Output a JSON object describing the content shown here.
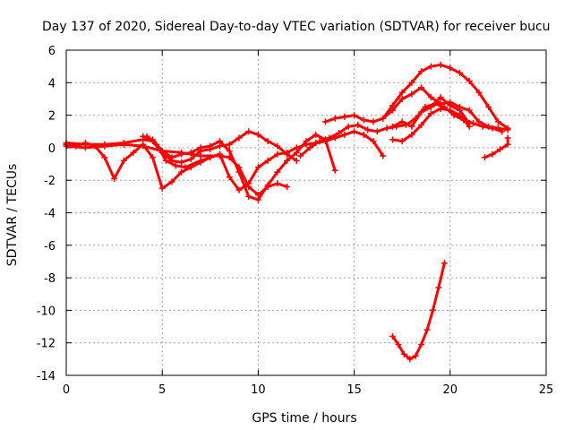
{
  "chart_data": {
    "type": "line",
    "title": "Day 137 of 2020, Sidereal Day-to-day VTEC variation (SDTVAR) for receiver bucu",
    "xlabel": "GPS time / hours",
    "ylabel": "SDTVAR / TECUs",
    "xlim": [
      0,
      25
    ],
    "ylim": [
      -14,
      6
    ],
    "xticks": [
      0,
      5,
      10,
      15,
      20,
      25
    ],
    "yticks": [
      -14,
      -12,
      -10,
      -8,
      -6,
      -4,
      -2,
      0,
      2,
      4,
      6
    ],
    "grid": true,
    "color": "#ff0000",
    "series": [
      {
        "name": "arc-1",
        "points": [
          [
            0,
            0.2
          ],
          [
            0.5,
            0.1
          ],
          [
            1,
            0.3
          ],
          [
            1.5,
            0.1
          ],
          [
            2,
            -0.6
          ],
          [
            2.5,
            -1.9
          ],
          [
            3,
            -0.8
          ],
          [
            3.5,
            -0.3
          ],
          [
            4,
            0.2
          ],
          [
            4.5,
            -0.6
          ],
          [
            5,
            -2.5
          ],
          [
            5.5,
            -2.1
          ],
          [
            6,
            -1.5
          ],
          [
            6.5,
            -1.2
          ],
          [
            7,
            -0.9
          ],
          [
            7.5,
            -0.6
          ],
          [
            8,
            -0.4
          ]
        ]
      },
      {
        "name": "arc-2",
        "points": [
          [
            0,
            0.3
          ],
          [
            1,
            0.2
          ],
          [
            2,
            0.2
          ],
          [
            3,
            0.3
          ],
          [
            4,
            0.5
          ],
          [
            4.5,
            0.4
          ],
          [
            5,
            -0.3
          ],
          [
            5.5,
            -0.8
          ],
          [
            6,
            -0.9
          ],
          [
            6.5,
            -0.7
          ],
          [
            7,
            -0.2
          ],
          [
            7.5,
            -0.1
          ],
          [
            8,
            0.1
          ],
          [
            8.5,
            0.2
          ],
          [
            9,
            0.6
          ],
          [
            9.5,
            1.0
          ],
          [
            10,
            0.8
          ],
          [
            10.5,
            0.4
          ],
          [
            11,
            0.1
          ],
          [
            11.5,
            -0.4
          ],
          [
            12,
            -0.8
          ]
        ]
      },
      {
        "name": "arc-3",
        "points": [
          [
            0,
            0.1
          ],
          [
            1,
            0.0
          ],
          [
            2,
            0.1
          ],
          [
            3,
            0.2
          ],
          [
            4,
            0.1
          ],
          [
            5,
            -0.2
          ],
          [
            6,
            -0.3
          ],
          [
            7,
            -0.5
          ],
          [
            8,
            -0.5
          ],
          [
            8.5,
            -0.6
          ],
          [
            9,
            -1.2
          ],
          [
            9.5,
            -2.4
          ],
          [
            10,
            -2.9
          ],
          [
            10.5,
            -2.4
          ],
          [
            11,
            -2.2
          ],
          [
            11.5,
            -2.4
          ]
        ]
      },
      {
        "name": "arc-4",
        "points": [
          [
            4.0,
            0.7
          ],
          [
            4.5,
            0.5
          ],
          [
            5,
            -0.2
          ],
          [
            5.5,
            -0.6
          ],
          [
            6,
            -0.4
          ],
          [
            6.5,
            -0.3
          ],
          [
            7,
            0.0
          ],
          [
            7.5,
            0.1
          ],
          [
            8,
            0.4
          ],
          [
            8.5,
            -0.2
          ],
          [
            9,
            -1.5
          ],
          [
            9.5,
            -3.0
          ],
          [
            10,
            -3.2
          ],
          [
            10.5,
            -2.3
          ],
          [
            11,
            -1.5
          ],
          [
            11.5,
            -0.8
          ],
          [
            12,
            -0.3
          ],
          [
            12.5,
            0.4
          ],
          [
            13,
            0.8
          ],
          [
            13.5,
            0.5
          ],
          [
            14,
            -1.4
          ]
        ]
      },
      {
        "name": "arc-5",
        "points": [
          [
            4.2,
            0.7
          ],
          [
            4.7,
            0.2
          ],
          [
            5.2,
            -0.8
          ],
          [
            5.7,
            -1.1
          ],
          [
            6.2,
            -1.2
          ],
          [
            7,
            -0.8
          ],
          [
            8,
            -0.4
          ],
          [
            8.5,
            -1.8
          ],
          [
            9,
            -2.6
          ],
          [
            9.5,
            -2.2
          ],
          [
            10,
            -1.2
          ],
          [
            10.5,
            -0.8
          ],
          [
            11,
            -0.4
          ],
          [
            11.5,
            -0.3
          ],
          [
            12,
            0.0
          ],
          [
            12.5,
            0.2
          ],
          [
            13,
            0.3
          ],
          [
            13.5,
            0.4
          ],
          [
            14,
            0.6
          ],
          [
            14.5,
            0.8
          ],
          [
            15,
            1.0
          ],
          [
            15.5,
            0.8
          ],
          [
            16,
            0.4
          ],
          [
            16.5,
            -0.5
          ]
        ]
      },
      {
        "name": "arc-6",
        "points": [
          [
            12.2,
            -0.5
          ],
          [
            12.7,
            0.0
          ],
          [
            13.2,
            0.4
          ],
          [
            13.7,
            0.6
          ],
          [
            14.2,
            0.9
          ],
          [
            14.7,
            1.3
          ],
          [
            15.2,
            1.4
          ],
          [
            15.7,
            1.1
          ],
          [
            16.2,
            1.0
          ],
          [
            16.7,
            1.2
          ],
          [
            17.2,
            1.3
          ],
          [
            17.7,
            1.4
          ],
          [
            18.2,
            1.8
          ],
          [
            18.7,
            2.5
          ],
          [
            19.2,
            2.7
          ],
          [
            19.7,
            2.5
          ],
          [
            20.2,
            2.0
          ],
          [
            20.7,
            1.7
          ],
          [
            21.2,
            1.5
          ],
          [
            21.7,
            1.3
          ],
          [
            22.2,
            1.2
          ],
          [
            22.7,
            1.0
          ]
        ]
      },
      {
        "name": "arc-7",
        "points": [
          [
            13.5,
            1.6
          ],
          [
            14,
            1.8
          ],
          [
            14.5,
            1.9
          ],
          [
            15,
            2.0
          ],
          [
            15.5,
            1.7
          ],
          [
            16,
            1.6
          ],
          [
            16.5,
            1.8
          ],
          [
            17,
            2.3
          ],
          [
            17.5,
            3.0
          ],
          [
            18,
            3.3
          ],
          [
            18.5,
            3.7
          ],
          [
            19,
            3.1
          ],
          [
            19.5,
            2.7
          ],
          [
            20,
            2.8
          ],
          [
            20.5,
            2.5
          ],
          [
            21,
            2.3
          ],
          [
            21.5,
            1.6
          ],
          [
            22,
            1.3
          ],
          [
            22.5,
            1.2
          ],
          [
            23,
            1.1
          ]
        ]
      },
      {
        "name": "arc-8",
        "points": [
          [
            16.5,
            1.8
          ],
          [
            17,
            2.6
          ],
          [
            17.5,
            3.4
          ],
          [
            18,
            4.0
          ],
          [
            18.5,
            4.7
          ],
          [
            19,
            5.0
          ],
          [
            19.5,
            5.1
          ],
          [
            20,
            4.9
          ],
          [
            20.5,
            4.6
          ],
          [
            21,
            4.1
          ],
          [
            21.5,
            3.4
          ],
          [
            22,
            2.5
          ],
          [
            22.5,
            1.6
          ],
          [
            23,
            1.2
          ]
        ]
      },
      {
        "name": "arc-9",
        "points": [
          [
            17.0,
            1.3
          ],
          [
            17.5,
            1.6
          ],
          [
            18,
            1.3
          ],
          [
            18.5,
            2.2
          ],
          [
            19,
            2.5
          ],
          [
            19.5,
            3.1
          ],
          [
            20,
            2.6
          ],
          [
            20.5,
            2.3
          ],
          [
            21,
            1.5
          ]
        ]
      },
      {
        "name": "arc-10",
        "points": [
          [
            17.0,
            0.5
          ],
          [
            17.5,
            0.4
          ],
          [
            18,
            0.8
          ],
          [
            18.5,
            1.4
          ],
          [
            19,
            2.1
          ],
          [
            19.5,
            2.4
          ],
          [
            20,
            2.3
          ],
          [
            20.5,
            2.0
          ],
          [
            21,
            1.3
          ]
        ]
      },
      {
        "name": "arc-11",
        "points": [
          [
            21.8,
            -0.6
          ],
          [
            22.2,
            -0.4
          ],
          [
            22.6,
            -0.1
          ],
          [
            23,
            0.2
          ],
          [
            23,
            0.6
          ]
        ]
      },
      {
        "name": "arc-12",
        "points": [
          [
            17.0,
            -11.6
          ],
          [
            17.3,
            -12.1
          ],
          [
            17.6,
            -12.7
          ],
          [
            17.9,
            -13.0
          ],
          [
            18.2,
            -12.8
          ],
          [
            18.5,
            -12.1
          ],
          [
            18.8,
            -11.2
          ],
          [
            19.1,
            -10.0
          ],
          [
            19.4,
            -8.6
          ],
          [
            19.7,
            -7.1
          ]
        ]
      }
    ]
  }
}
